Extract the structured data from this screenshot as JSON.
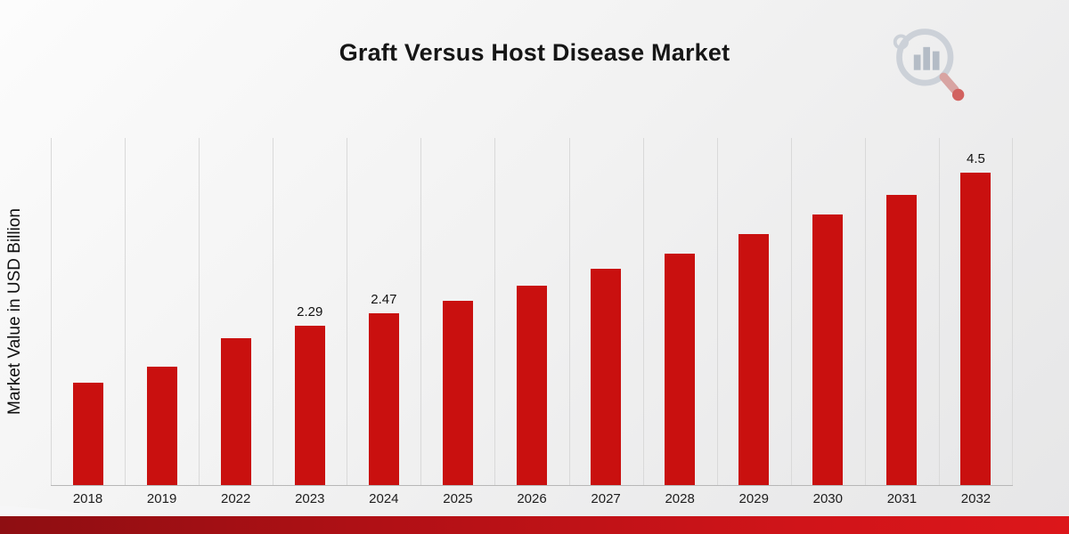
{
  "header": {
    "title": "Graft Versus Host Disease Market",
    "logo": "market-research-future-logo"
  },
  "chart_data": {
    "type": "bar",
    "title": "Graft Versus Host Disease Market",
    "xlabel": "",
    "ylabel": "Market Value in USD Billion",
    "categories": [
      "2018",
      "2019",
      "2022",
      "2023",
      "2024",
      "2025",
      "2026",
      "2027",
      "2028",
      "2029",
      "2030",
      "2031",
      "2032"
    ],
    "values": [
      1.48,
      1.7,
      2.12,
      2.29,
      2.47,
      2.66,
      2.87,
      3.11,
      3.33,
      3.61,
      3.9,
      4.18,
      4.5
    ],
    "data_labels": {
      "2023": "2.29",
      "2024": "2.47",
      "2032": "4.5"
    },
    "bar_color": "#c9100f",
    "ylim": [
      0,
      5
    ],
    "grid": "vertical-only",
    "legend": false
  },
  "footer": {
    "accent_color": "#c01015"
  }
}
